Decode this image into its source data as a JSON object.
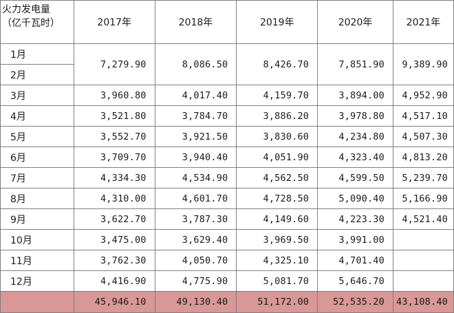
{
  "table": {
    "corner_label_line1": "火力发电量",
    "corner_label_line2": "（亿千瓦时）",
    "years": [
      "2017年",
      "2018年",
      "2019年",
      "2020年",
      "2021年"
    ],
    "months": [
      "1月",
      "2月",
      "3月",
      "4月",
      "5月",
      "6月",
      "7月",
      "8月",
      "9月",
      "10月",
      "11月",
      "12月"
    ],
    "jan_feb": [
      "7,279.90",
      "8,086.50",
      "8,426.70",
      "7,851.90",
      "9,389.90"
    ],
    "rows": [
      [
        "3,960.80",
        "4,017.40",
        "4,159.70",
        "3,894.00",
        "4,952.90"
      ],
      [
        "3,521.80",
        "3,784.70",
        "3,886.20",
        "3,978.80",
        "4,517.10"
      ],
      [
        "3,552.70",
        "3,921.50",
        "3,830.60",
        "4,234.80",
        "4,507.30"
      ],
      [
        "3,709.70",
        "3,940.40",
        "4,051.90",
        "4,323.40",
        "4,813.20"
      ],
      [
        "4,334.30",
        "4,534.90",
        "4,562.50",
        "4,599.50",
        "5,239.70"
      ],
      [
        "4,310.00",
        "4,601.70",
        "4,728.50",
        "5,090.40",
        "5,166.90"
      ],
      [
        "3,622.70",
        "3,787.30",
        "4,149.60",
        "4,223.30",
        "4,521.40"
      ],
      [
        "3,475.00",
        "3,629.40",
        "3,969.50",
        "3,991.00",
        ""
      ],
      [
        "3,762.30",
        "4,050.70",
        "4,325.10",
        "4,701.40",
        ""
      ],
      [
        "4,416.90",
        "4,775.90",
        "5,081.70",
        "5,646.70",
        ""
      ]
    ],
    "totals": [
      "45,946.10",
      "49,130.40",
      "51,172.00",
      "52,535.20",
      "43,108.40"
    ],
    "total_fill": "#d99796",
    "border_color": "#7f7f7f"
  }
}
